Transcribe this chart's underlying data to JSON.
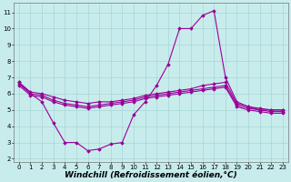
{
  "xlabel": "Windchill (Refroidissement éolien,°C)",
  "bg_color": "#c8ecec",
  "line_color": "#990099",
  "xlim": [
    -0.5,
    23.5
  ],
  "ylim": [
    1.8,
    11.6
  ],
  "yticks": [
    2,
    3,
    4,
    5,
    6,
    7,
    8,
    9,
    10,
    11
  ],
  "xticks": [
    0,
    1,
    2,
    3,
    4,
    5,
    6,
    7,
    8,
    9,
    10,
    11,
    12,
    13,
    14,
    15,
    16,
    17,
    18,
    19,
    20,
    21,
    22,
    23
  ],
  "lines": [
    {
      "x": [
        0,
        1,
        2,
        3,
        4,
        5,
        6,
        7,
        8,
        9,
        10,
        11,
        12,
        13,
        14,
        15,
        16,
        17,
        18,
        19,
        20,
        21,
        22,
        23
      ],
      "y": [
        6.7,
        6.1,
        6.0,
        5.8,
        5.6,
        5.5,
        5.4,
        5.5,
        5.5,
        5.6,
        5.7,
        5.9,
        6.0,
        6.1,
        6.2,
        6.3,
        6.5,
        6.6,
        6.7,
        5.4,
        5.2,
        5.1,
        5.0,
        5.0
      ]
    },
    {
      "x": [
        0,
        1,
        2,
        3,
        4,
        5,
        6,
        7,
        8,
        9,
        10,
        11,
        12,
        13,
        14,
        15,
        16,
        17,
        18,
        19,
        20,
        21,
        22,
        23
      ],
      "y": [
        6.6,
        6.0,
        5.9,
        5.6,
        5.4,
        5.3,
        5.2,
        5.3,
        5.4,
        5.5,
        5.6,
        5.8,
        5.9,
        6.0,
        6.1,
        6.2,
        6.3,
        6.4,
        6.5,
        5.3,
        5.1,
        5.0,
        4.9,
        4.9
      ]
    },
    {
      "x": [
        0,
        1,
        2,
        3,
        4,
        5,
        6,
        7,
        8,
        9,
        10,
        11,
        12,
        13,
        14,
        15,
        16,
        17,
        18,
        19,
        20,
        21,
        22,
        23
      ],
      "y": [
        6.5,
        5.9,
        5.8,
        5.5,
        5.3,
        5.2,
        5.1,
        5.2,
        5.3,
        5.4,
        5.5,
        5.7,
        5.8,
        5.9,
        6.0,
        6.1,
        6.2,
        6.3,
        6.4,
        5.2,
        5.0,
        4.9,
        4.8,
        4.8
      ]
    },
    {
      "x": [
        0,
        1,
        2,
        3,
        4,
        5,
        6,
        7,
        8,
        9,
        10,
        11,
        12,
        13,
        14,
        15,
        16,
        17,
        18,
        19,
        20,
        21,
        22,
        23
      ],
      "y": [
        6.7,
        6.0,
        5.5,
        4.2,
        3.0,
        3.0,
        2.5,
        2.6,
        2.9,
        3.0,
        4.7,
        5.5,
        6.5,
        7.8,
        10.0,
        10.0,
        10.8,
        11.1,
        7.0,
        5.5,
        5.2,
        5.0,
        5.0,
        5.0
      ]
    }
  ],
  "marker": "D",
  "markersize": 1.8,
  "linewidth": 0.8,
  "grid_color": "#a0d0d0",
  "tick_fontsize": 5,
  "xlabel_fontsize": 6.5
}
